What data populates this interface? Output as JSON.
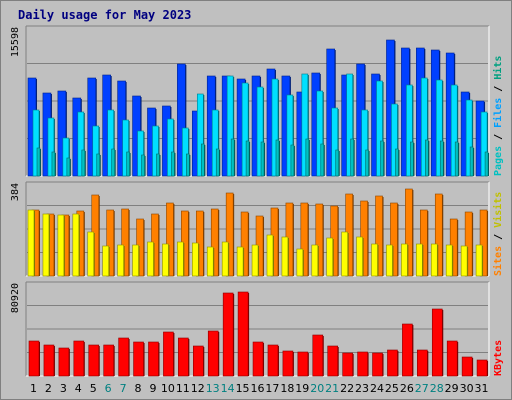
{
  "chart_data": {
    "type": "bar",
    "title": "Daily usage for May 2023",
    "categories": [
      "1",
      "2",
      "3",
      "4",
      "5",
      "6",
      "7",
      "8",
      "9",
      "10",
      "11",
      "12",
      "13",
      "14",
      "15",
      "16",
      "17",
      "18",
      "19",
      "20",
      "21",
      "22",
      "23",
      "24",
      "25",
      "26",
      "27",
      "28",
      "29",
      "30",
      "31"
    ],
    "weekend_days": [
      "6",
      "7",
      "13",
      "14",
      "20",
      "21",
      "27",
      "28"
    ],
    "panels": [
      {
        "name": "pages-files-hits",
        "ymax": 15598,
        "ytick": "15598",
        "side_labels": [
          "Pages",
          "Files",
          "Hits"
        ],
        "series": [
          {
            "name": "Hits",
            "color": "#0040ff",
            "values": [
              10470,
              8910,
              9130,
              8340,
              10470,
              10820,
              10140,
              8510,
              7280,
              7520,
              11990,
              6930,
              10730,
              10640,
              10310,
              10680,
              11420,
              10730,
              9010,
              11050,
              13580,
              10790,
              11950,
              10890,
              14560,
              13710,
              13710,
              13430,
              13190,
              9020,
              8050
            ]
          },
          {
            "name": "Files",
            "color": "#00e0ff",
            "values": [
              7070,
              6200,
              4100,
              6800,
              5300,
              7000,
              6000,
              4800,
              5300,
              6100,
              5100,
              8750,
              7000,
              10700,
              9930,
              9520,
              10330,
              8700,
              10950,
              9090,
              7300,
              10930,
              7000,
              10170,
              7640,
              9730,
              10460,
              10230,
              9760,
              8100,
              6800
            ]
          },
          {
            "name": "Pages",
            "color": "#00c0c0",
            "values": [
              3000,
              2600,
              1900,
              2800,
              2300,
              2900,
              2600,
              2200,
              2300,
              2600,
              2300,
              3400,
              2900,
              4000,
              3700,
              3600,
              3800,
              3300,
              4000,
              3400,
              2800,
              4000,
              2800,
              3700,
              2900,
              3600,
              3800,
              3700,
              3600,
              3100,
              2600
            ]
          }
        ]
      },
      {
        "name": "sites-visits",
        "ymax": 384,
        "ytick": "384",
        "side_labels": [
          "Sites",
          "Visits"
        ],
        "series": [
          {
            "name": "Visits",
            "color": "#ff8000",
            "values": [
              280,
              266,
              262,
              279,
              344,
              282,
              286,
              243,
              263,
              310,
              279,
              276,
              286,
              352,
              275,
              256,
              290,
              310,
              312,
              307,
              297,
              348,
              318,
              341,
              310,
              373,
              283,
              350,
              243,
              275,
              281
            ]
          },
          {
            "name": "Sites",
            "color": "#ffff00",
            "values": [
              281,
              263,
              260,
              263,
              186,
              128,
              134,
              132,
              143,
              138,
              143,
              142,
              123,
              144,
              124,
              134,
              175,
              166,
              116,
              132,
              162,
              187,
              168,
              136,
              134,
              136,
              135,
              138,
              134,
              129,
              131
            ]
          }
        ]
      },
      {
        "name": "kbytes",
        "ymax": 80920,
        "ytick": "80920",
        "side_labels": [
          "KBytes"
        ],
        "series": [
          {
            "name": "KBytes",
            "color": "#ff0000",
            "values": [
              31600,
              28200,
              25500,
              31300,
              27600,
              28200,
              33900,
              30500,
              30800,
              39800,
              34600,
              26600,
              40100,
              74200,
              75600,
              31000,
              27500,
              22800,
              22000,
              36600,
              27100,
              21100,
              21400,
              20800,
              23500,
              47000,
              23000,
              60400,
              31400,
              17500,
              14600
            ]
          }
        ]
      }
    ]
  }
}
